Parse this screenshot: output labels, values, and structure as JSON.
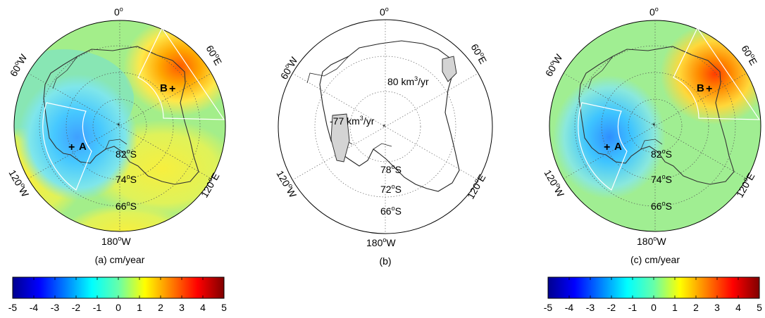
{
  "colors": {
    "land_outline": "#222222",
    "region_box": "#ffffff",
    "grid": "#666666",
    "basin_fill": "#d4d4d4"
  },
  "colorbar": {
    "ticks": [
      "-5",
      "-4",
      "-3",
      "-2",
      "-1",
      "0",
      "1",
      "2",
      "3",
      "4",
      "5"
    ],
    "range": [
      -5,
      5
    ],
    "colormap": "jet",
    "units": "cm/year"
  },
  "panels": [
    {
      "caption": "(a) cm/year",
      "longitude_labels": {
        "top": "0",
        "upper_left": "60",
        "upper_right": "60",
        "lower_left": "120",
        "lower_right": "120",
        "bottom": "180"
      },
      "longitude_suffix": {
        "upper_left": "W",
        "upper_right": "E",
        "lower_left": "W",
        "lower_right": "E",
        "bottom": "W"
      },
      "latitude_labels": [
        "82",
        "74",
        "66"
      ],
      "latitude_suffix": "S",
      "degree_symbol": "o",
      "points": [
        {
          "label": "A",
          "marker": "+"
        },
        {
          "label": "B",
          "marker": "+"
        }
      ],
      "has_colorbar": true
    },
    {
      "caption": "(b)",
      "longitude_labels": {
        "top": "0",
        "upper_left": "60",
        "upper_right": "60",
        "lower_left": "120",
        "lower_right": "120",
        "bottom": "180"
      },
      "longitude_suffix": {
        "upper_left": "W",
        "upper_right": "E",
        "lower_left": "W",
        "lower_right": "E",
        "bottom": "W"
      },
      "latitude_labels": [
        "78",
        "72",
        "66"
      ],
      "latitude_suffix": "S",
      "degree_symbol": "o",
      "annotations": [
        {
          "value": "80 km",
          "sup": "3",
          "unit": "/yr"
        },
        {
          "value": "-77 km",
          "sup": "3",
          "unit": "/yr"
        }
      ],
      "has_colorbar": false
    },
    {
      "caption": "(c) cm/year",
      "longitude_labels": {
        "top": "0",
        "upper_left": "60",
        "upper_right": "60",
        "lower_left": "120",
        "lower_right": "120",
        "bottom": "180"
      },
      "longitude_suffix": {
        "upper_left": "W",
        "upper_right": "E",
        "lower_left": "W",
        "lower_right": "E",
        "bottom": "W"
      },
      "latitude_labels": [
        "82",
        "74",
        "66"
      ],
      "latitude_suffix": "S",
      "degree_symbol": "o",
      "points": [
        {
          "label": "A",
          "marker": "+"
        },
        {
          "label": "B",
          "marker": "+"
        }
      ],
      "has_colorbar": true
    }
  ]
}
